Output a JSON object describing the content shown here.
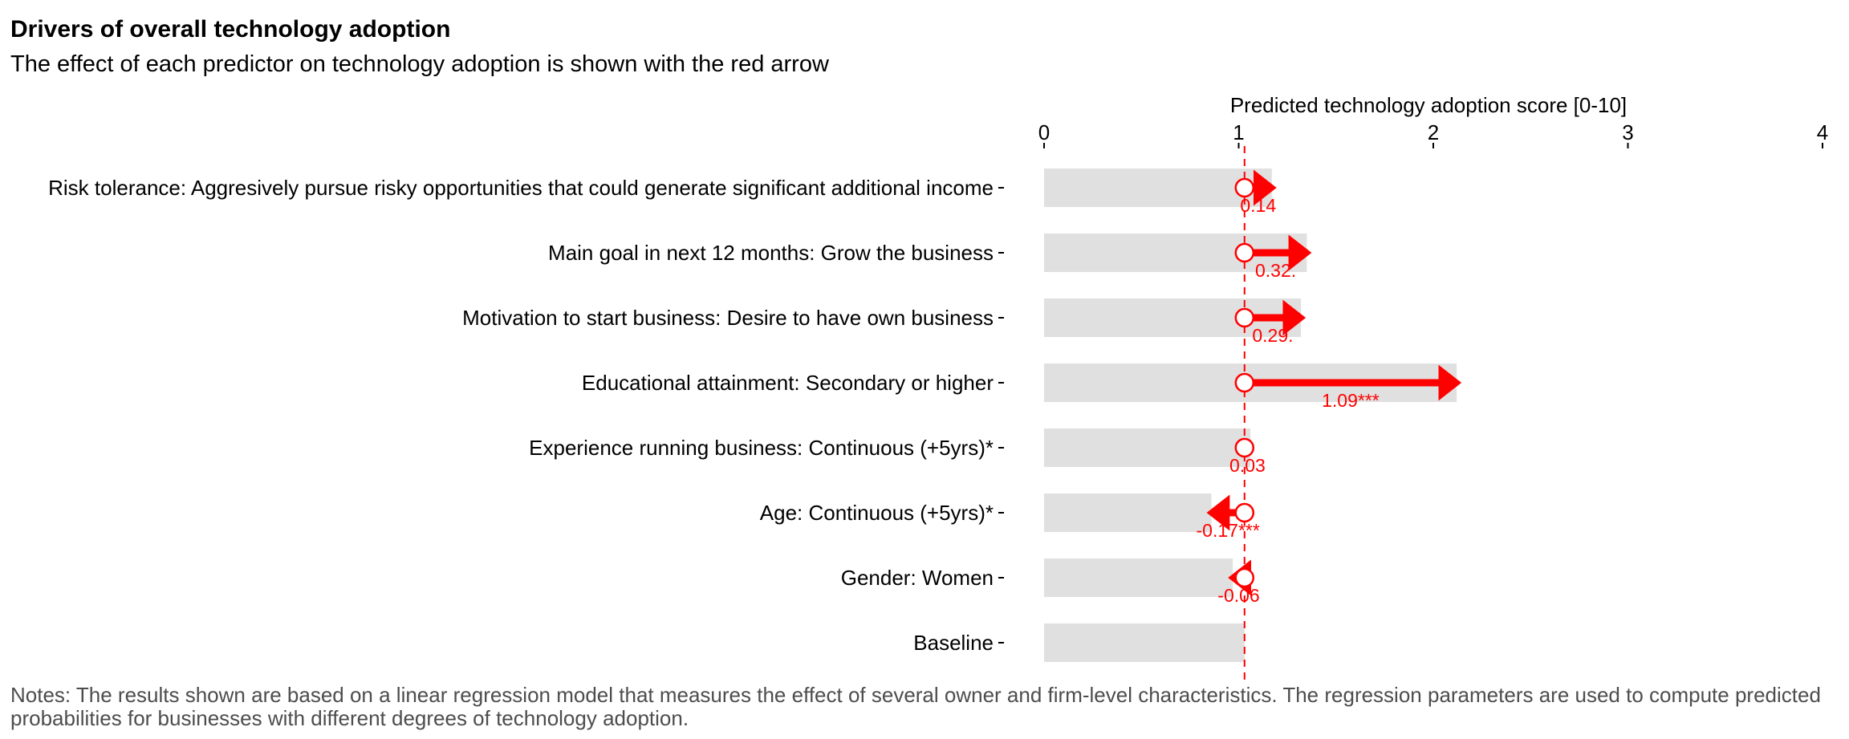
{
  "title": "Drivers of overall technology adoption",
  "subtitle": "The effect of each predictor on technology adoption is shown with the red arrow",
  "notes": "Notes: The results shown are based on a linear regression model that measures the effect of several owner and firm-level characteristics. The regression parameters are used to compute predicted probabilities for businesses with different degrees of technology adoption.",
  "colors": {
    "arrow": "#ff0000",
    "bar": "#e0e0e0",
    "baseline_line": "#ff0000",
    "text": "#000000"
  },
  "chart_data": {
    "type": "bar",
    "orientation": "horizontal",
    "xlabel": "Predicted technology adoption score [0-10]",
    "x_axis_position": "top",
    "xlim": [
      0,
      4
    ],
    "xticks": [
      0,
      1,
      2,
      3,
      4
    ],
    "grid": false,
    "baseline_value": 1.03,
    "categories": [
      "Risk tolerance: Aggresively pursue risky opportunities that could generate significant additional income",
      "Main goal in next 12 months: Grow the business",
      "Motivation to start business: Desire to have own business",
      "Educational attainment: Secondary or higher",
      "Experience running business: Continuous (+5yrs)*",
      "Age: Continuous (+5yrs)*",
      "Gender: Women",
      "Baseline"
    ],
    "effects": [
      0.14,
      0.32,
      0.29,
      1.09,
      0.03,
      -0.17,
      -0.06,
      null
    ],
    "effect_labels": [
      "0.14",
      "0.32.",
      "0.29.",
      "1.09***",
      "0.03",
      "-0.17***",
      "-0.06",
      ""
    ],
    "values": [
      1.17,
      1.35,
      1.32,
      2.12,
      1.06,
      0.86,
      0.97,
      1.03
    ]
  }
}
